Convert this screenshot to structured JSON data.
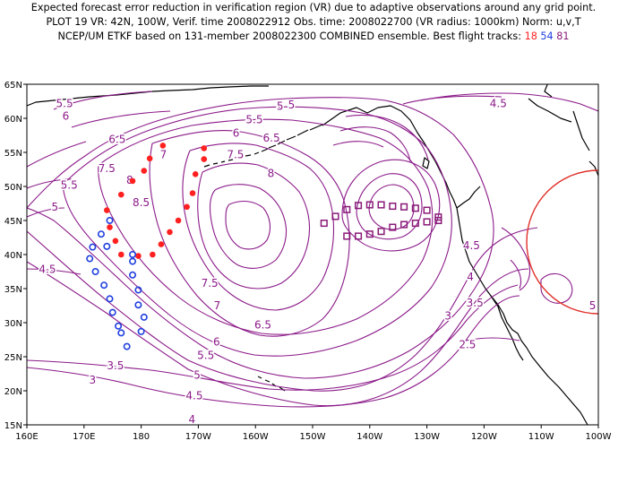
{
  "header": {
    "line1": "Expected forecast error reduction in verification region (VR) due to adaptive observations around any grid point.",
    "line2": "PLOT 19 VR: 42N, 100W, Verif. time 2008022912 Obs. time: 2008022700 (VR radius: 1000km) Norm: u,v,T",
    "line3_prefix": "NCEP/UM ETKF based on 131-member 2008022300 COMBINED ensemble.  Best flight tracks:",
    "tracks": [
      "18",
      "54",
      "81"
    ]
  },
  "map": {
    "lon_labels": [
      "160E",
      "170E",
      "180",
      "170W",
      "160W",
      "150W",
      "140W",
      "130W",
      "120W",
      "110W",
      "100W"
    ],
    "lat_labels": [
      "65N",
      "60N",
      "55N",
      "50N",
      "45N",
      "40N",
      "35N",
      "30N",
      "25N",
      "20N",
      "15N"
    ],
    "lon_range": [
      160,
      260
    ],
    "lat_range": [
      15,
      65
    ],
    "contour_color": "#8b1a89",
    "contour_labels": [
      {
        "text": "5.5",
        "lon": 166.6,
        "lat": 62.2
      },
      {
        "text": "5",
        "lon": 206.3,
        "lat": 62.0
      },
      {
        "text": "5",
        "lon": 204.3,
        "lat": 61.8
      },
      {
        "text": "4.5",
        "lon": 242.5,
        "lat": 62.2
      },
      {
        "text": "6",
        "lon": 166.8,
        "lat": 60.3
      },
      {
        "text": "5.5",
        "lon": 199.8,
        "lat": 59.8
      },
      {
        "text": "6",
        "lon": 196.6,
        "lat": 57.8
      },
      {
        "text": "6.5",
        "lon": 202.8,
        "lat": 57.1
      },
      {
        "text": "6.5",
        "lon": 175.8,
        "lat": 56.9
      },
      {
        "text": "7",
        "lon": 183.9,
        "lat": 54.7
      },
      {
        "text": "7.5",
        "lon": 196.5,
        "lat": 54.7
      },
      {
        "text": "7.5",
        "lon": 174.0,
        "lat": 52.6
      },
      {
        "text": "8",
        "lon": 202.7,
        "lat": 51.9
      },
      {
        "text": "8",
        "lon": 178.0,
        "lat": 50.9
      },
      {
        "text": "5.5",
        "lon": 167.4,
        "lat": 50.2
      },
      {
        "text": "8.5",
        "lon": 180.0,
        "lat": 47.6
      },
      {
        "text": "5",
        "lon": 164.9,
        "lat": 47.0
      },
      {
        "text": "4.5",
        "lon": 163.6,
        "lat": 37.8
      },
      {
        "text": "4.5",
        "lon": 237.8,
        "lat": 41.3
      },
      {
        "text": "4",
        "lon": 237.6,
        "lat": 36.7
      },
      {
        "text": "7.5",
        "lon": 192.0,
        "lat": 35.8
      },
      {
        "text": "3.5",
        "lon": 238.4,
        "lat": 32.9
      },
      {
        "text": "7",
        "lon": 193.3,
        "lat": 32.5
      },
      {
        "text": "5",
        "lon": 259.0,
        "lat": 32.5
      },
      {
        "text": "3",
        "lon": 233.7,
        "lat": 31.0
      },
      {
        "text": "6.5",
        "lon": 201.3,
        "lat": 29.7
      },
      {
        "text": "6",
        "lon": 193.2,
        "lat": 27.2
      },
      {
        "text": "2.5",
        "lon": 237.1,
        "lat": 26.8
      },
      {
        "text": "5.5",
        "lon": 191.3,
        "lat": 25.2
      },
      {
        "text": "3.5",
        "lon": 175.5,
        "lat": 23.7
      },
      {
        "text": "5",
        "lon": 189.8,
        "lat": 22.3
      },
      {
        "text": "3",
        "lon": 171.5,
        "lat": 21.6
      },
      {
        "text": "4.5",
        "lon": 189.3,
        "lat": 19.3
      },
      {
        "text": "4",
        "lon": 188.9,
        "lat": 15.8
      }
    ],
    "verification_region": {
      "center_lon": 260,
      "center_lat": 42,
      "radius_km": 1000,
      "color": "#e0302a"
    },
    "tracks": [
      {
        "name": "18",
        "color": "#ff2020",
        "marker": "dot",
        "points": [
          [
            191,
            55.6
          ],
          [
            191,
            54
          ],
          [
            189.5,
            51.8
          ],
          [
            189,
            49
          ],
          [
            188,
            47
          ],
          [
            186.5,
            45
          ],
          [
            185,
            43.3
          ],
          [
            183.5,
            41.5
          ],
          [
            182,
            40
          ],
          [
            179.5,
            39.8
          ],
          [
            176.5,
            40
          ],
          [
            175.5,
            42
          ],
          [
            174.5,
            44
          ],
          [
            174,
            46.5
          ],
          [
            176.5,
            48.8
          ],
          [
            178.5,
            50.8
          ],
          [
            180.5,
            52.3
          ],
          [
            181.5,
            54.1
          ],
          [
            183.8,
            56
          ]
        ]
      },
      {
        "name": "54",
        "color": "#1f3fdf",
        "marker": "circle",
        "points": [
          [
            174.5,
            45
          ],
          [
            173,
            43
          ],
          [
            174,
            41.2
          ],
          [
            171.5,
            41.1
          ],
          [
            171,
            39.4
          ],
          [
            172,
            37.5
          ],
          [
            173.5,
            35.5
          ],
          [
            174.5,
            33.5
          ],
          [
            175,
            31.5
          ],
          [
            176,
            29.5
          ],
          [
            176.5,
            28.5
          ],
          [
            177.5,
            26.5
          ],
          [
            180,
            28.7
          ],
          [
            180.5,
            30.8
          ],
          [
            179.5,
            32.6
          ],
          [
            179.5,
            34.8
          ],
          [
            178.5,
            37
          ],
          [
            178.5,
            39
          ],
          [
            178.5,
            40
          ]
        ]
      },
      {
        "name": "81",
        "color": "#8a1a78",
        "marker": "square",
        "points": [
          [
            212,
            44.6
          ],
          [
            214,
            45.6
          ],
          [
            216,
            46.6
          ],
          [
            218,
            47.2
          ],
          [
            220,
            47.3
          ],
          [
            222,
            47.3
          ],
          [
            224,
            47.1
          ],
          [
            226,
            47
          ],
          [
            228,
            46.8
          ],
          [
            230,
            46.5
          ],
          [
            232,
            45.5
          ],
          [
            232,
            45
          ],
          [
            230,
            44.8
          ],
          [
            228,
            44.6
          ],
          [
            226,
            44.4
          ],
          [
            224,
            44
          ],
          [
            222,
            43.4
          ],
          [
            220,
            43
          ],
          [
            218,
            42.7
          ],
          [
            216,
            42.7
          ]
        ]
      }
    ]
  }
}
